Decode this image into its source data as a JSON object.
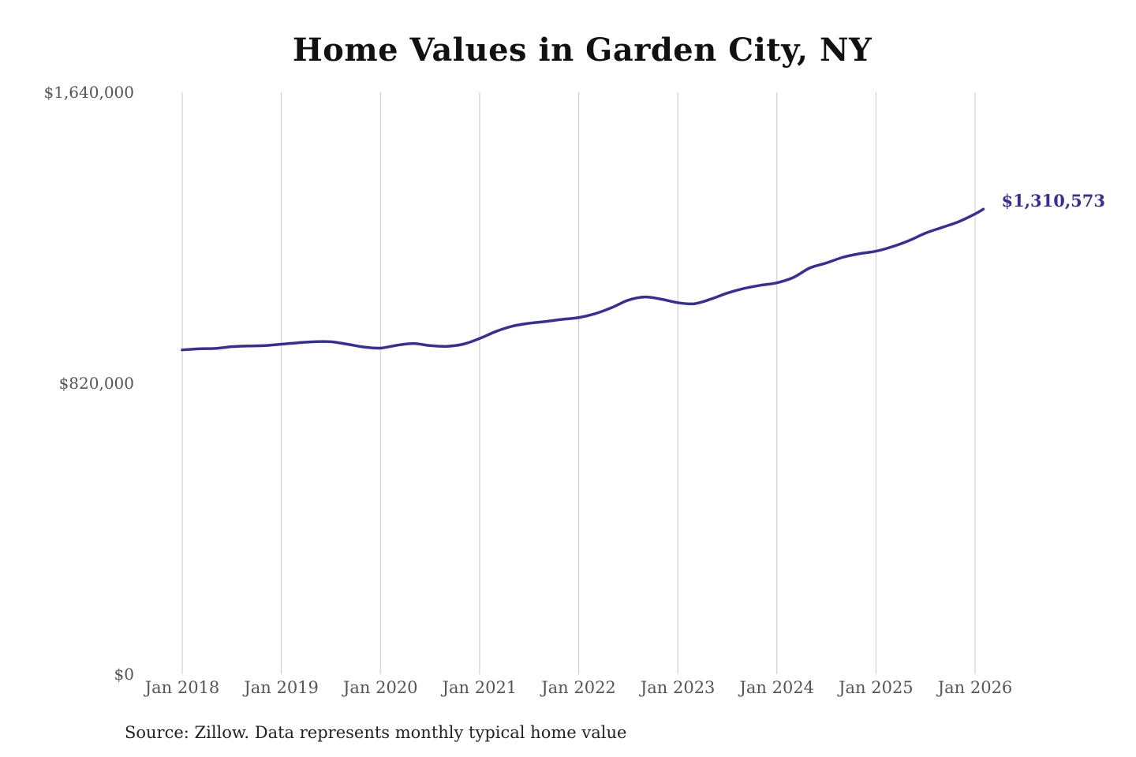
{
  "title": "Home Values in Garden City, NY",
  "source": "Source: Zillow. Data represents monthly typical home value",
  "colors": {
    "line": "#352f96",
    "grid": "#c8c8c8",
    "text": "#555555"
  },
  "chart_data": {
    "type": "line",
    "title": "Home Values in Garden City, NY",
    "xlabel": "",
    "ylabel": "",
    "ylim": [
      0,
      1640000
    ],
    "xlim": [
      "2018-01",
      "2026-01"
    ],
    "y_ticks": [
      0,
      820000,
      1640000
    ],
    "y_tick_labels": [
      "$0",
      "$820,000",
      "$1,640,000"
    ],
    "x_ticks": [
      "2018-01",
      "2019-01",
      "2020-01",
      "2021-01",
      "2022-01",
      "2023-01",
      "2024-01",
      "2025-01",
      "2026-01"
    ],
    "x_tick_labels": [
      "Jan 2018",
      "Jan 2019",
      "Jan 2020",
      "Jan 2021",
      "Jan 2022",
      "Jan 2023",
      "Jan 2024",
      "Jan 2025",
      "Jan 2026"
    ],
    "grid": "vertical",
    "end_label": "$1,310,573",
    "series": [
      {
        "x": [
          "2018-01",
          "2018-03",
          "2018-05",
          "2018-07",
          "2018-09",
          "2018-11",
          "2019-01",
          "2019-03",
          "2019-05",
          "2019-07",
          "2019-09",
          "2019-11",
          "2020-01",
          "2020-03",
          "2020-05",
          "2020-07",
          "2020-09",
          "2020-11",
          "2021-01",
          "2021-03",
          "2021-05",
          "2021-07",
          "2021-09",
          "2021-11",
          "2022-01",
          "2022-03",
          "2022-05",
          "2022-07",
          "2022-09",
          "2022-11",
          "2023-01",
          "2023-03",
          "2023-05",
          "2023-07",
          "2023-09",
          "2023-11",
          "2024-01",
          "2024-03",
          "2024-05",
          "2024-07",
          "2024-09",
          "2024-11",
          "2025-01",
          "2025-03",
          "2025-05",
          "2025-07",
          "2025-09",
          "2025-11",
          "2026-01",
          "2026-02"
        ],
        "y": [
          914000,
          917000,
          918000,
          923000,
          925000,
          926000,
          930000,
          934000,
          937000,
          937000,
          930000,
          922000,
          919000,
          927000,
          932000,
          926000,
          924000,
          930000,
          946000,
          966000,
          981000,
          989000,
          994000,
          1000000,
          1005000,
          1016000,
          1033000,
          1054000,
          1063000,
          1057000,
          1047000,
          1044000,
          1057000,
          1074000,
          1087000,
          1096000,
          1103000,
          1118000,
          1145000,
          1159000,
          1175000,
          1185000,
          1192000,
          1205000,
          1222000,
          1243000,
          1259000,
          1275000,
          1297000,
          1310573
        ]
      }
    ]
  }
}
